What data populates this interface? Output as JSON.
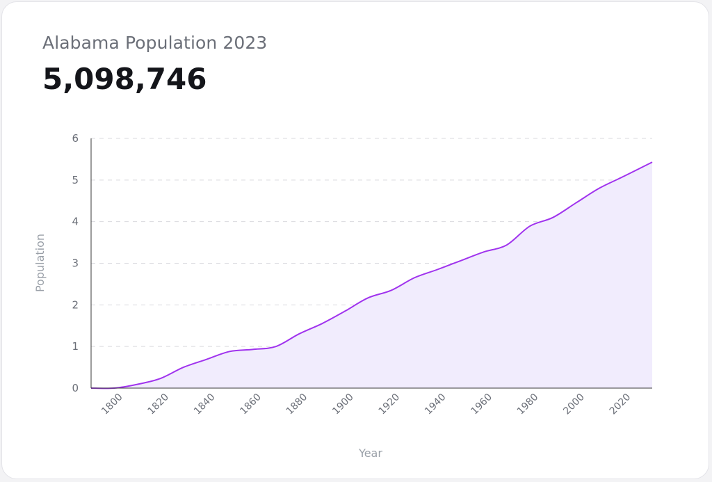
{
  "header": {
    "title": "Alabama Population 2023",
    "value": "5,098,746"
  },
  "colors": {
    "line": "#a033ee",
    "fill": "#f1ecfd",
    "grid": "#d9d9de",
    "axis": "#3a3a3a",
    "tick_text": "#6b6f78",
    "axis_label": "#9aa0a8"
  },
  "chart_data": {
    "type": "area",
    "xlabel": "Year",
    "ylabel": "Population",
    "xlim": [
      1790,
      2033
    ],
    "ylim": [
      0,
      6
    ],
    "x_ticks": [
      1800,
      1820,
      1840,
      1860,
      1880,
      1900,
      1920,
      1940,
      1960,
      1980,
      2000,
      2020
    ],
    "y_ticks": [
      0,
      1,
      2,
      3,
      4,
      5,
      6
    ],
    "grid": true,
    "series": [
      {
        "x": [
          1790,
          1800,
          1810,
          1820,
          1830,
          1840,
          1850,
          1860,
          1870,
          1880,
          1890,
          1900,
          1910,
          1920,
          1930,
          1940,
          1950,
          1960,
          1970,
          1980,
          1990,
          2000,
          2010,
          2020,
          2033
        ],
        "y": [
          0,
          0,
          0.09,
          0.23,
          0.5,
          0.69,
          0.88,
          0.93,
          1.0,
          1.3,
          1.55,
          1.85,
          2.17,
          2.35,
          2.65,
          2.85,
          3.06,
          3.27,
          3.44,
          3.89,
          4.1,
          4.45,
          4.8,
          5.07,
          5.43
        ]
      }
    ]
  }
}
